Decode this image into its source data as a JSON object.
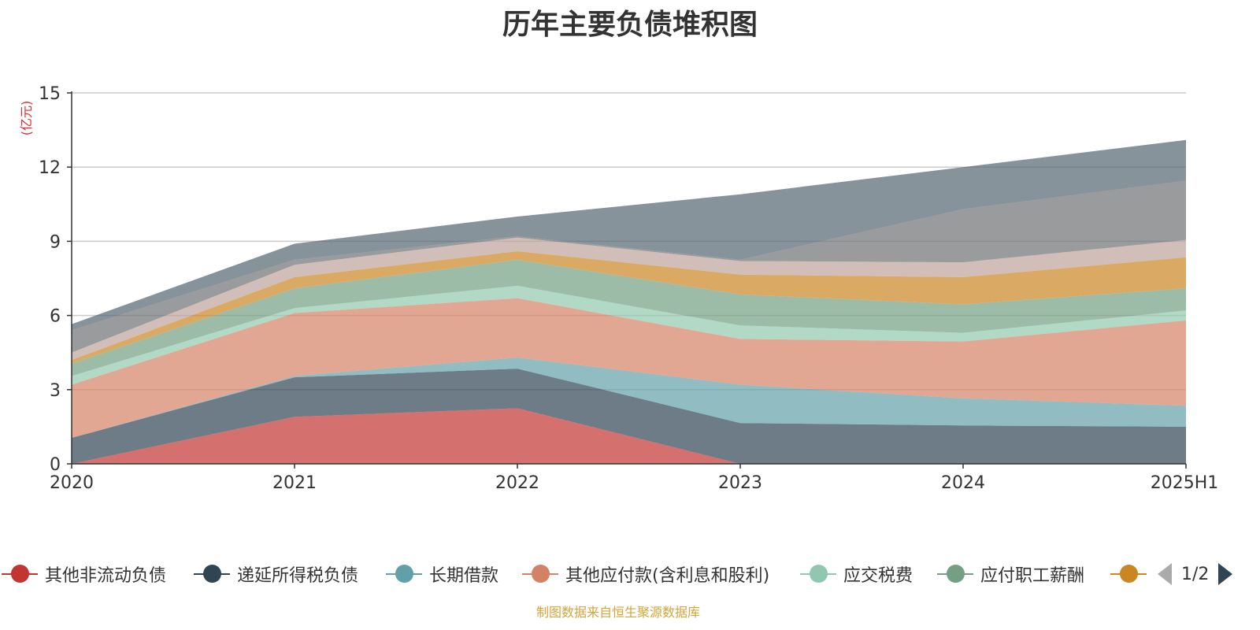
{
  "title": "历年主要负债堆积图",
  "unit_label": "(亿元)",
  "source": "制图数据来自恒生聚源数据库",
  "pager": {
    "text": "1/2"
  },
  "legend": [
    {
      "name": "其他非流动负债",
      "color": "#c23531"
    },
    {
      "name": "递延所得税负债",
      "color": "#2f4554"
    },
    {
      "name": "长期借款",
      "color": "#61a0a8"
    },
    {
      "name": "其他应付款(含利息和股利)",
      "color": "#d48265"
    },
    {
      "name": "应交税费",
      "color": "#91c7ae"
    },
    {
      "name": "应付职工薪酬",
      "color": "#749f83"
    },
    {
      "name": "",
      "color": "#ca8622"
    }
  ],
  "chart_data": {
    "type": "area",
    "stacked": true,
    "title": "历年主要负债堆积图",
    "ylabel": "(亿元)",
    "categories": [
      "2020",
      "2021",
      "2022",
      "2023",
      "2024",
      "2025H1"
    ],
    "ylim": [
      0,
      15
    ],
    "yticks": [
      0,
      3,
      6,
      9,
      12,
      15
    ],
    "grid": true,
    "series": [
      {
        "name": "其他非流动负债",
        "color": "#c23531",
        "values": [
          0.0,
          1.9,
          2.25,
          0.0,
          0.0,
          0.0
        ]
      },
      {
        "name": "递延所得税负债",
        "color": "#2f4554",
        "values": [
          1.05,
          1.6,
          1.6,
          1.65,
          1.55,
          1.5
        ]
      },
      {
        "name": "长期借款",
        "color": "#61a0a8",
        "values": [
          0.0,
          0.05,
          0.45,
          1.55,
          1.1,
          0.85
        ]
      },
      {
        "name": "其他应付款(含利息和股利)",
        "color": "#d48265",
        "values": [
          2.15,
          2.55,
          2.4,
          1.85,
          2.3,
          3.45
        ]
      },
      {
        "name": "应交税费",
        "color": "#91c7ae",
        "values": [
          0.35,
          0.2,
          0.5,
          0.55,
          0.35,
          0.4
        ]
      },
      {
        "name": "应付职工薪酬",
        "color": "#749f83",
        "values": [
          0.5,
          0.8,
          1.05,
          1.25,
          1.15,
          0.9
        ]
      },
      {
        "name": "",
        "color": "#ca8622",
        "values": [
          0.15,
          0.45,
          0.35,
          0.8,
          1.1,
          1.25
        ]
      },
      {
        "name": "",
        "color": "#bda29a",
        "values": [
          0.3,
          0.5,
          0.55,
          0.55,
          0.6,
          0.7
        ]
      },
      {
        "name": "",
        "color": "#6e7074",
        "values": [
          0.9,
          0.2,
          0.05,
          0.05,
          2.15,
          2.4
        ]
      },
      {
        "name": "",
        "color": "#546570",
        "values": [
          0.25,
          0.65,
          0.8,
          2.65,
          1.7,
          1.65
        ]
      }
    ]
  }
}
